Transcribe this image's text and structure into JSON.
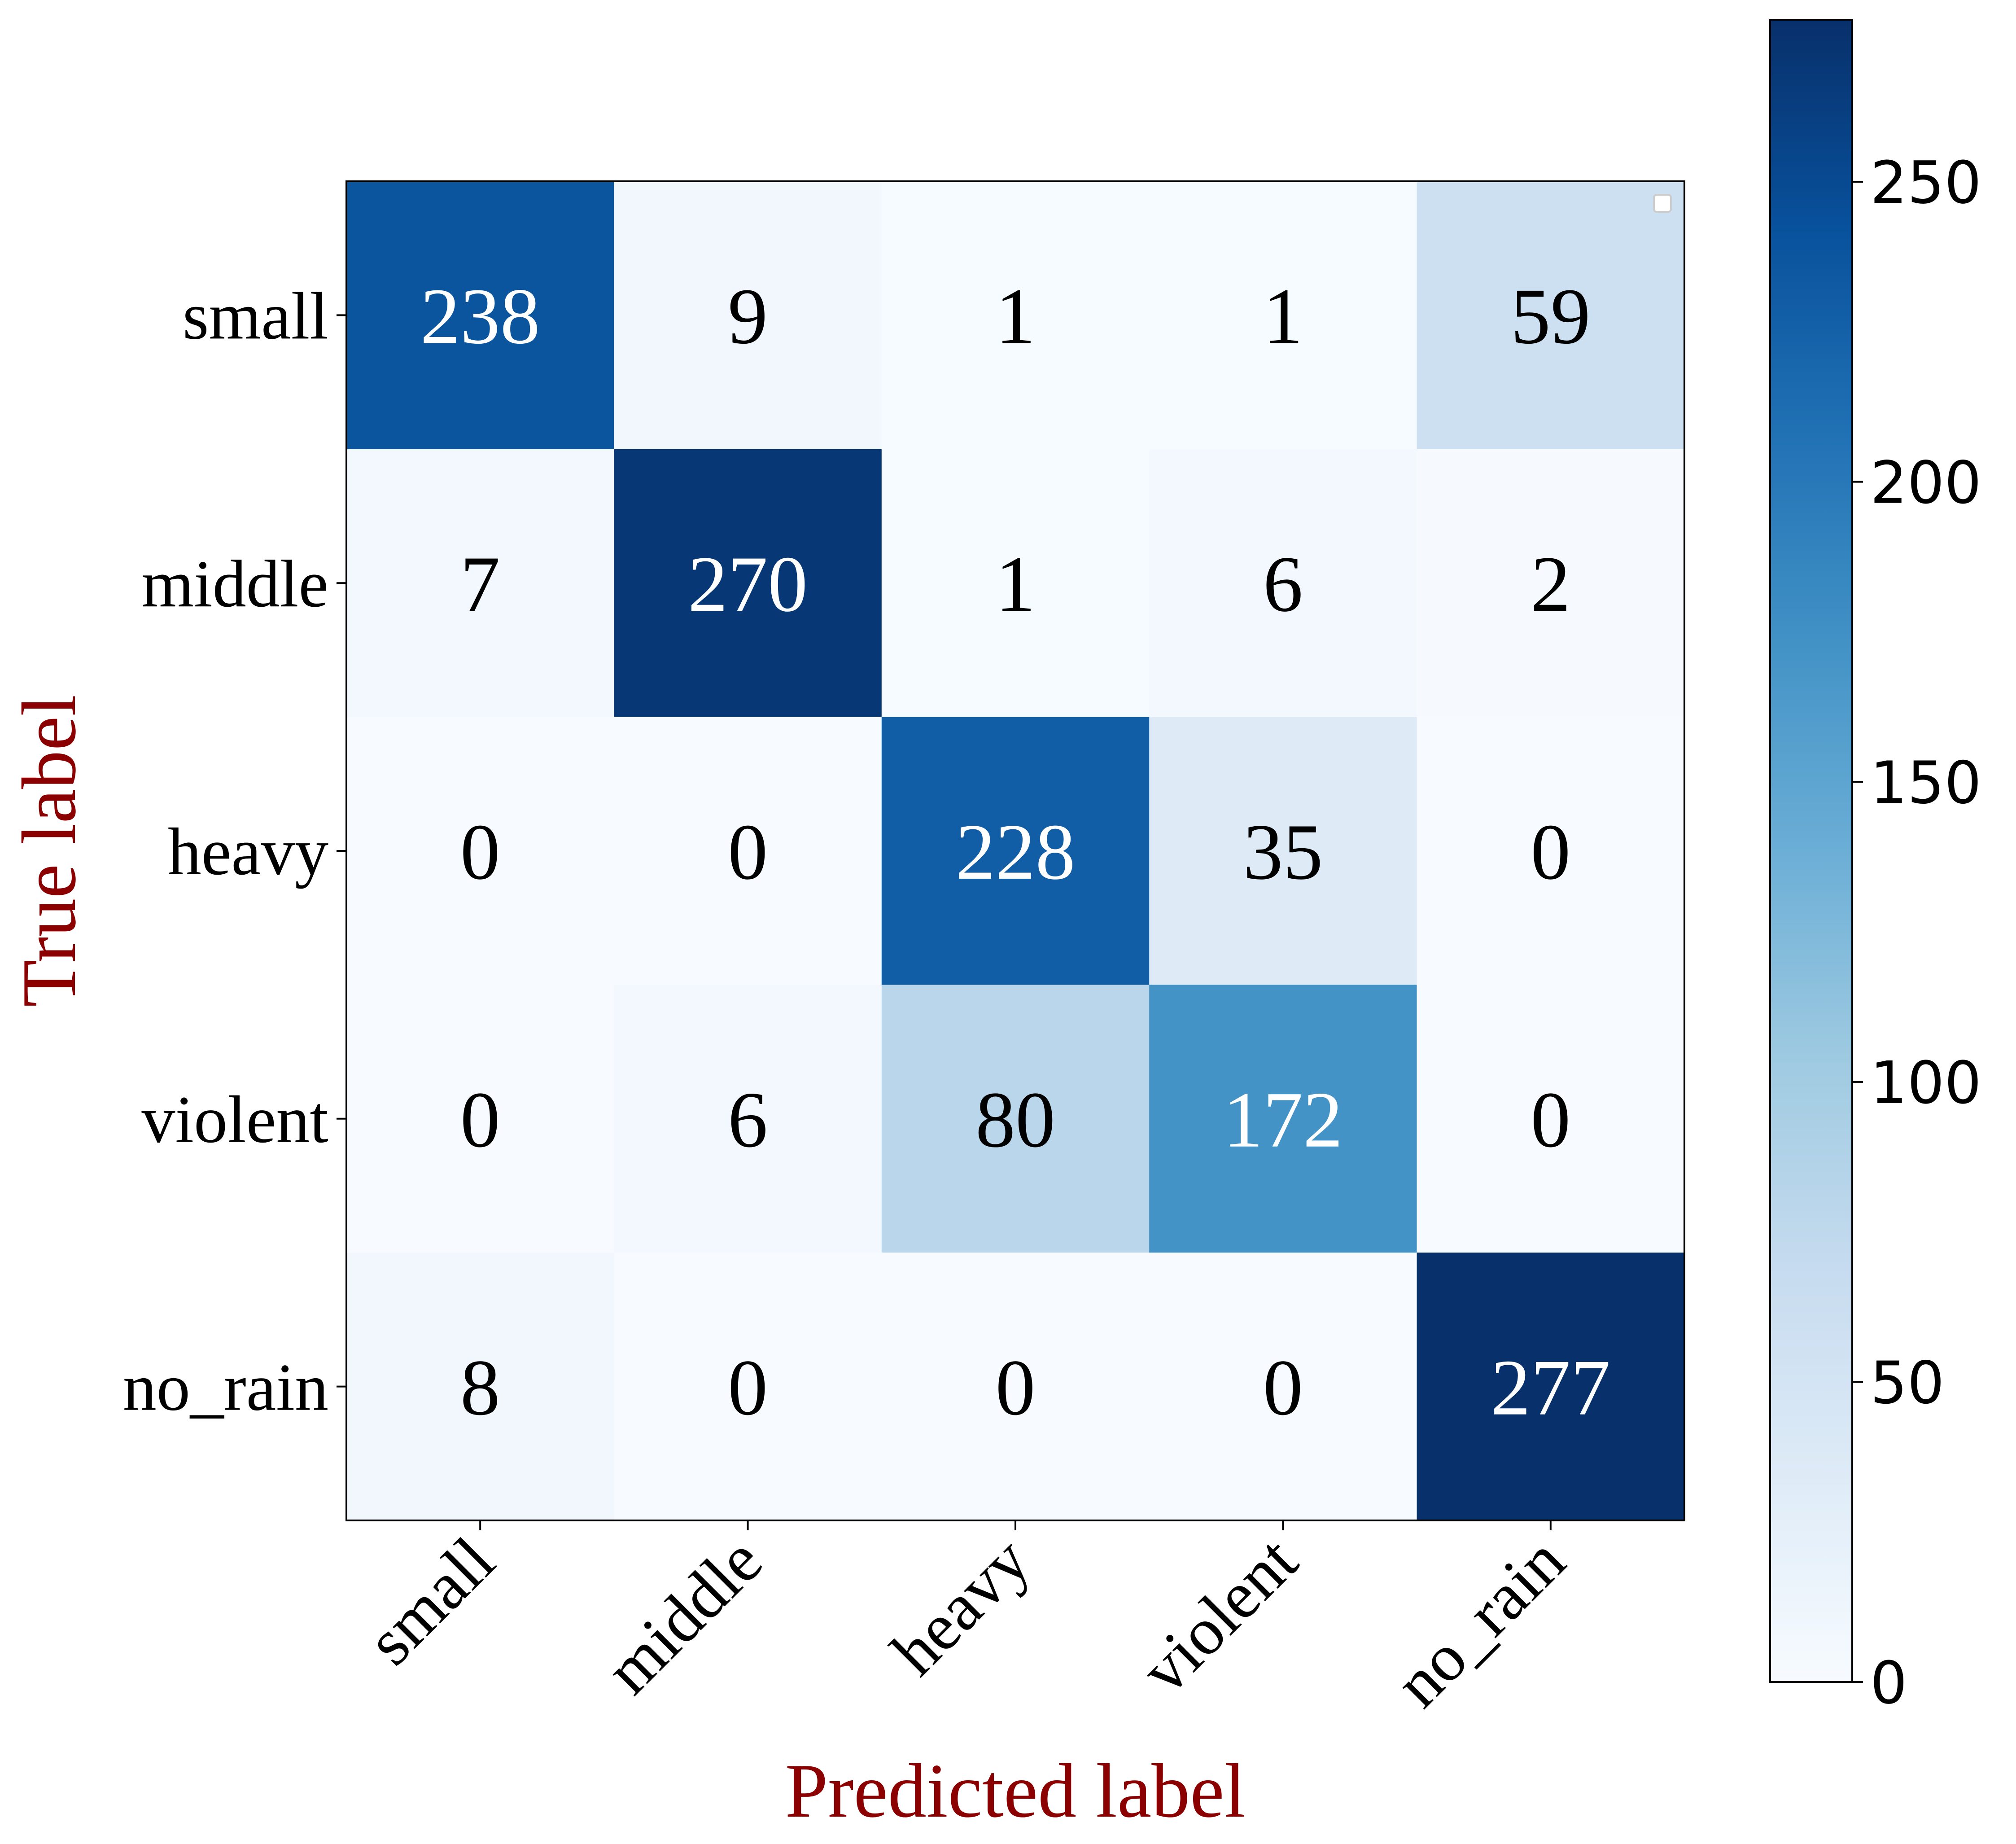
{
  "chart_data": {
    "type": "heatmap",
    "title": "",
    "xlabel": "Predicted label",
    "ylabel": "True label",
    "x_categories": [
      "small",
      "middle",
      "heavy",
      "violent",
      "no_rain"
    ],
    "y_categories": [
      "small",
      "middle",
      "heavy",
      "violent",
      "no_rain"
    ],
    "matrix": [
      [
        238,
        9,
        1,
        1,
        59
      ],
      [
        7,
        270,
        1,
        6,
        2
      ],
      [
        0,
        0,
        228,
        35,
        0
      ],
      [
        0,
        6,
        80,
        172,
        0
      ],
      [
        8,
        0,
        0,
        0,
        277
      ]
    ],
    "colormap": "Blues",
    "colorbar": {
      "min": 0,
      "max": 277,
      "ticks": [
        0,
        50,
        100,
        150,
        200,
        250
      ],
      "tick_labels": [
        "0",
        "50",
        "100",
        "150",
        "200",
        "250"
      ]
    },
    "label_color": "#8b0000",
    "legend": "upper-right (empty)",
    "grid": false
  }
}
